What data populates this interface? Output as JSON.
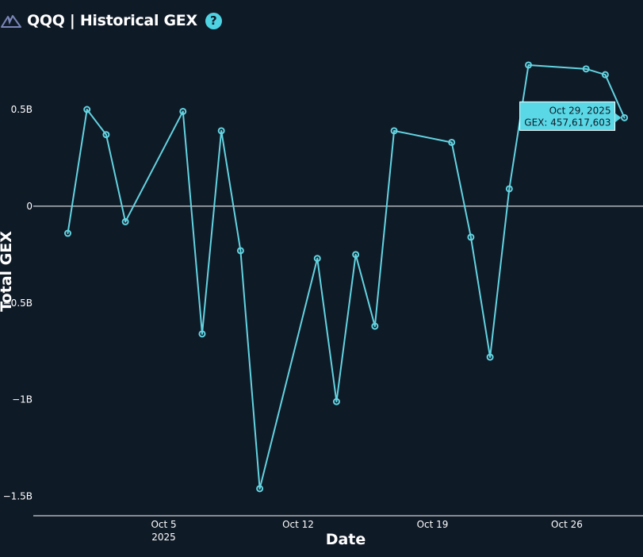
{
  "header": {
    "title": "QQQ | Historical GEX",
    "help_label": "?"
  },
  "colors": {
    "background": "#0f1a27",
    "series": "#63d3e0",
    "tooltip_bg": "#5ad8e6",
    "zero_line": "#ffffff"
  },
  "icons": {
    "logo": "mountain-logo-icon",
    "help": "question-circle-icon"
  },
  "chart_data": {
    "type": "line",
    "title": "",
    "xlabel": "Date",
    "ylabel": "Total GEX",
    "ylim": [
      -1.6,
      0.82
    ],
    "yunit": "B",
    "grid": false,
    "zero_line": true,
    "x_ticks": [
      {
        "date": "2025-10-05",
        "label": "Oct 5",
        "sub": "2025"
      },
      {
        "date": "2025-10-12",
        "label": "Oct 12",
        "sub": ""
      },
      {
        "date": "2025-10-19",
        "label": "Oct 19",
        "sub": ""
      },
      {
        "date": "2025-10-26",
        "label": "Oct 26",
        "sub": ""
      }
    ],
    "y_ticks": [
      {
        "value": 0.5,
        "label": "0.5B"
      },
      {
        "value": 0,
        "label": "0"
      },
      {
        "value": -0.5,
        "label": "−0.5B"
      },
      {
        "value": -1,
        "label": "−1B"
      },
      {
        "value": -1.5,
        "label": "−1.5B"
      }
    ],
    "series": [
      {
        "points": [
          {
            "x": "2025-09-30",
            "y": -0.14
          },
          {
            "x": "2025-10-01",
            "y": 0.5
          },
          {
            "x": "2025-10-02",
            "y": 0.37
          },
          {
            "x": "2025-10-03",
            "y": -0.08
          },
          {
            "x": "2025-10-06",
            "y": 0.49
          },
          {
            "x": "2025-10-07",
            "y": -0.66
          },
          {
            "x": "2025-10-08",
            "y": 0.39
          },
          {
            "x": "2025-10-09",
            "y": -0.23
          },
          {
            "x": "2025-10-10",
            "y": -1.46
          },
          {
            "x": "2025-10-13",
            "y": -0.27
          },
          {
            "x": "2025-10-14",
            "y": -1.01
          },
          {
            "x": "2025-10-15",
            "y": -0.25
          },
          {
            "x": "2025-10-16",
            "y": -0.62
          },
          {
            "x": "2025-10-17",
            "y": 0.39
          },
          {
            "x": "2025-10-20",
            "y": 0.33
          },
          {
            "x": "2025-10-21",
            "y": -0.16
          },
          {
            "x": "2025-10-22",
            "y": -0.78
          },
          {
            "x": "2025-10-23",
            "y": 0.09
          },
          {
            "x": "2025-10-24",
            "y": 0.73
          },
          {
            "x": "2025-10-27",
            "y": 0.71
          },
          {
            "x": "2025-10-28",
            "y": 0.68
          },
          {
            "x": "2025-10-29",
            "y": 0.457617603
          }
        ]
      }
    ],
    "tooltip": {
      "date_label": "Oct 29, 2025",
      "value_label": "GEX: 457,617,603",
      "x": "2025-10-29",
      "y": 0.457617603
    }
  }
}
